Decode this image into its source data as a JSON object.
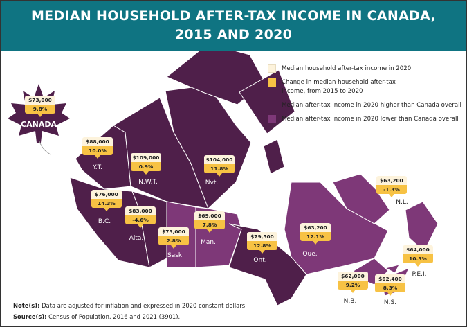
{
  "header": {
    "title_line1": "MEDIAN HOUSEHOLD AFTER-TAX INCOME IN CANADA,",
    "title_line2": "2015 AND 2020"
  },
  "colors": {
    "header": "#0f7482",
    "higher": "#4f1f4a",
    "lower": "#7e3878",
    "value_box": "#fdf3dc",
    "change_box": "#f7c244"
  },
  "legend": [
    {
      "label": "Median household after-tax income in 2020",
      "color": "#fdf3dc"
    },
    {
      "label": "Change in median household after-tax income, from 2015 to 2020",
      "color": "#f7c244"
    },
    {
      "label": "Median after-tax income in 2020 higher than Canada overall",
      "color": "#4f1f4a"
    },
    {
      "label": "Median after-tax income in 2020 lower than Canada overall",
      "color": "#7e3878"
    }
  ],
  "canada": {
    "name": "CANADA",
    "value": "$73,000",
    "change": "9.8%"
  },
  "regions": [
    {
      "key": "yt",
      "name": "Y.T.",
      "value": "$88,000",
      "change": "10.0%",
      "group": "higher"
    },
    {
      "key": "nwt",
      "name": "N.W.T.",
      "value": "$109,000",
      "change": "0.9%",
      "group": "higher"
    },
    {
      "key": "nvt",
      "name": "Nvt.",
      "value": "$104,000",
      "change": "11.8%",
      "group": "higher"
    },
    {
      "key": "bc",
      "name": "B.C.",
      "value": "$76,000",
      "change": "14.3%",
      "group": "higher"
    },
    {
      "key": "alta",
      "name": "Alta.",
      "value": "$83,000",
      "change": "-4.6%",
      "group": "higher"
    },
    {
      "key": "sask",
      "name": "Sask.",
      "value": "$73,000",
      "change": "2.8%",
      "group": "lower"
    },
    {
      "key": "man",
      "name": "Man.",
      "value": "$69,000",
      "change": "7.8%",
      "group": "lower"
    },
    {
      "key": "ont",
      "name": "Ont.",
      "value": "$79,500",
      "change": "12.8%",
      "group": "higher"
    },
    {
      "key": "que",
      "name": "Que.",
      "value": "$63,200",
      "change": "12.1%",
      "group": "lower"
    },
    {
      "key": "nl",
      "name": "N.L.",
      "value": "$63,200",
      "change": "-1.3%",
      "group": "lower"
    },
    {
      "key": "pei",
      "name": "P.E.I.",
      "value": "$64,000",
      "change": "10.3%",
      "group": "lower"
    },
    {
      "key": "nb",
      "name": "N.B.",
      "value": "$62,000",
      "change": "9.2%",
      "group": "lower"
    },
    {
      "key": "ns",
      "name": "N.S.",
      "value": "$62,400",
      "change": "8.3%",
      "group": "lower"
    }
  ],
  "notes": {
    "note_label": "Note(s):",
    "note_text": " Data are adjusted for inflation and expressed in 2020 constant dollars.",
    "source_label": "Source(s):",
    "source_text": " Census of Population, 2016 and 2021 (3901)."
  }
}
